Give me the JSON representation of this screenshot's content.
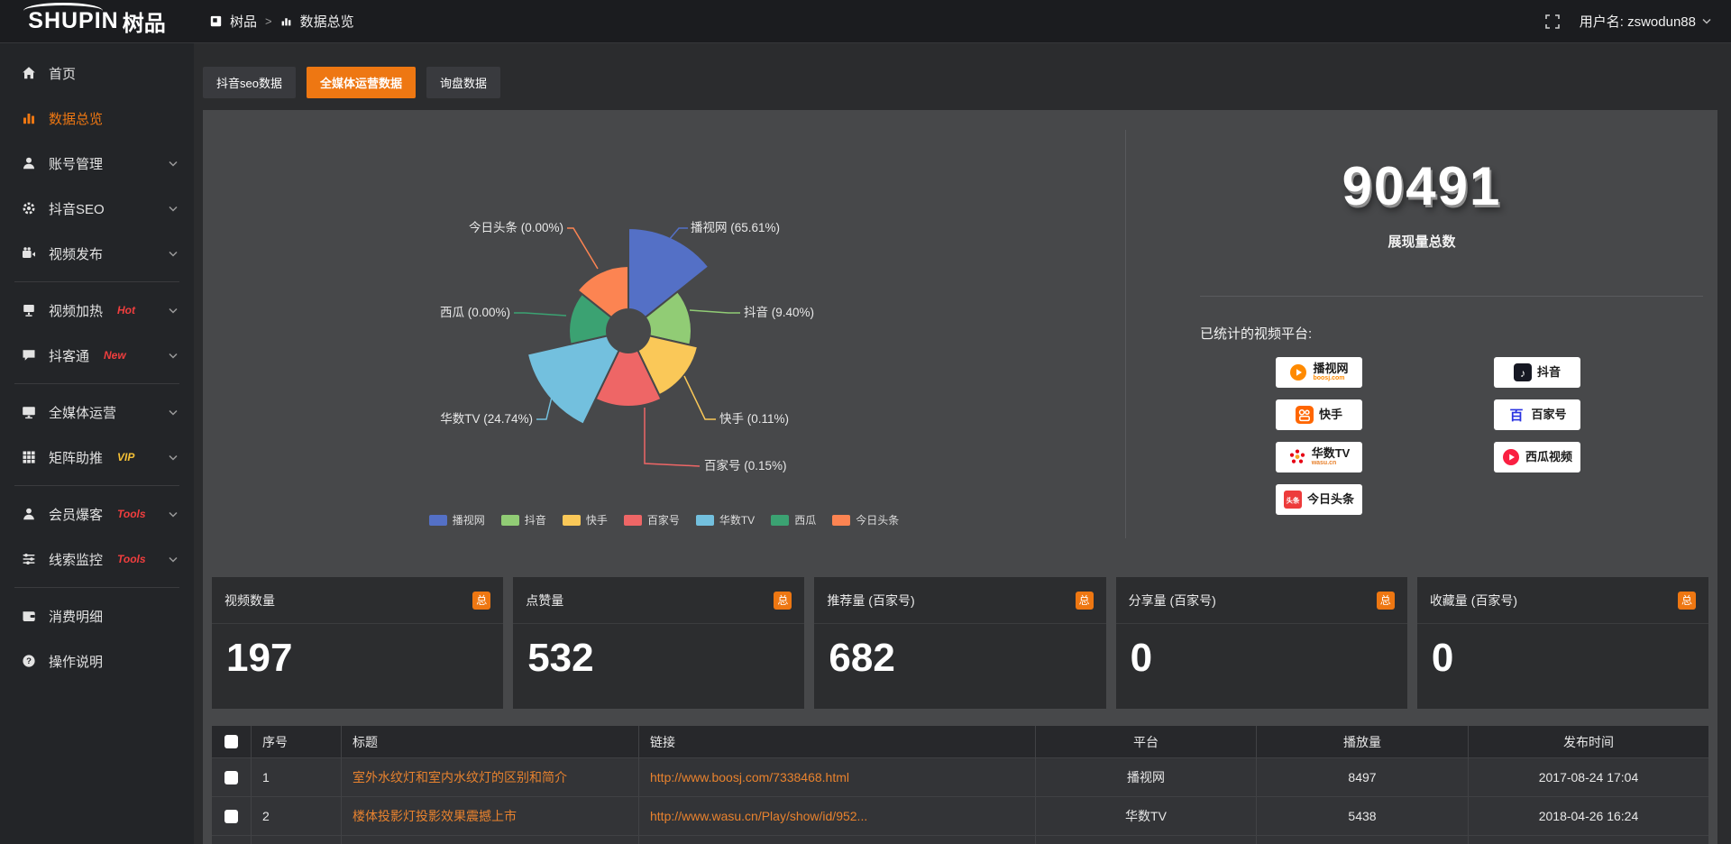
{
  "topbar": {
    "logo_en": "SHUPIN",
    "logo_cn": "树品",
    "breadcrumb": {
      "root": "树品",
      "separator": ">",
      "current": "数据总览"
    },
    "username": "用户名: zswodun88"
  },
  "sidebar": {
    "items": [
      {
        "id": "home",
        "icon": "home",
        "label": "首页"
      },
      {
        "id": "data-overview",
        "icon": "chart",
        "label": "数据总览",
        "active": true
      },
      {
        "id": "account-management",
        "icon": "user",
        "label": "账号管理",
        "expandable": true
      },
      {
        "id": "douyin-seo",
        "icon": "gear",
        "label": "抖音SEO",
        "expandable": true
      },
      {
        "id": "video-publish",
        "icon": "video",
        "label": "视频发布",
        "expandable": true
      },
      {
        "type": "divider"
      },
      {
        "id": "video-heat",
        "icon": "heat",
        "label": "视频加热",
        "badge": "Hot",
        "badge_color": "#f03e3e",
        "expandable": true
      },
      {
        "id": "douketong",
        "icon": "chat",
        "label": "抖客通",
        "badge": "New",
        "badge_color": "#f03e3e",
        "expandable": true
      },
      {
        "type": "divider"
      },
      {
        "id": "omnimedia",
        "icon": "monitor",
        "label": "全媒体运营",
        "expandable": true
      },
      {
        "id": "matrix-boost",
        "icon": "grid",
        "label": "矩阵助推",
        "badge": "VIP",
        "badge_color": "#f5c036",
        "expandable": true
      },
      {
        "type": "divider"
      },
      {
        "id": "member-burst",
        "icon": "person",
        "label": "会员爆客",
        "badge": "Tools",
        "badge_color": "#f03e3e",
        "expandable": true
      },
      {
        "id": "lead-monitor",
        "icon": "sliders",
        "label": "线索监控",
        "badge": "Tools",
        "badge_color": "#f03e3e",
        "expandable": true
      },
      {
        "type": "divider"
      },
      {
        "id": "expense-detail",
        "icon": "wallet",
        "label": "消费明细"
      },
      {
        "id": "instructions",
        "icon": "question",
        "label": "操作说明"
      }
    ]
  },
  "tabs": [
    {
      "id": "douyin-seo-data",
      "label": "抖音seo数据"
    },
    {
      "id": "omnimedia-data",
      "label": "全媒体运营数据",
      "active": true
    },
    {
      "id": "inquiry-data",
      "label": "询盘数据"
    }
  ],
  "chart_data": {
    "type": "pie",
    "variant": "nightingale-rose",
    "unit": "%",
    "slices": [
      {
        "label": "播视网",
        "value": 65.61,
        "display": "播视网 (65.61%)",
        "color": "#5470c6"
      },
      {
        "label": "抖音",
        "value": 9.4,
        "display": "抖音 (9.40%)",
        "color": "#91cc75"
      },
      {
        "label": "快手",
        "value": 0.11,
        "display": "快手 (0.11%)",
        "color": "#fac858"
      },
      {
        "label": "百家号",
        "value": 0.15,
        "display": "百家号 (0.15%)",
        "color": "#ee6666"
      },
      {
        "label": "华数TV",
        "value": 24.74,
        "display": "华数TV (24.74%)",
        "color": "#73c0de"
      },
      {
        "label": "西瓜",
        "value": 0.0,
        "display": "西瓜 (0.00%)",
        "color": "#3ba272"
      },
      {
        "label": "今日头条",
        "value": 0.0,
        "display": "今日头条 (0.00%)",
        "color": "#fc8452"
      }
    ],
    "legend": [
      "播视网",
      "抖音",
      "快手",
      "百家号",
      "华数TV",
      "西瓜",
      "今日头条"
    ],
    "legend_position": "bottom"
  },
  "summary": {
    "total_value": "90491",
    "total_label": "展现量总数",
    "platforms_title": "已统计的视频平台:",
    "platform_columns": [
      [
        {
          "id": "boosj",
          "name": "播视网",
          "sub": "boosj.com",
          "sub_color": "#ff8a00"
        },
        {
          "id": "kuaishou",
          "name": "快手"
        },
        {
          "id": "wasu",
          "name": "华数TV",
          "sub": "wasu.cn",
          "sub_color": "#e8822e"
        },
        {
          "id": "toutiao",
          "name": "今日头条"
        }
      ],
      [
        {
          "id": "douyin",
          "name": "抖音"
        },
        {
          "id": "baijiahao",
          "name": "百家号"
        },
        {
          "id": "xigua",
          "name": "西瓜视频"
        }
      ]
    ]
  },
  "stat_cards": [
    {
      "title": "视频数量",
      "badge": "总",
      "value": "197"
    },
    {
      "title": "点赞量",
      "badge": "总",
      "value": "532"
    },
    {
      "title": "推荐量 (百家号)",
      "badge": "总",
      "value": "682"
    },
    {
      "title": "分享量 (百家号)",
      "badge": "总",
      "value": "0"
    },
    {
      "title": "收藏量 (百家号)",
      "badge": "总",
      "value": "0"
    }
  ],
  "table": {
    "headers": [
      "序号",
      "标题",
      "链接",
      "平台",
      "播放量",
      "发布时间"
    ],
    "rows": [
      {
        "no": "1",
        "title": "室外水纹灯和室内水纹灯的区别和简介",
        "link": "http://www.boosj.com/7338468.html",
        "platform": "播视网",
        "views": "8497",
        "time": "2017-08-24 17:04"
      },
      {
        "no": "2",
        "title": "楼体投影灯投影效果震撼上市",
        "link": "http://www.wasu.cn/Play/show/id/952...",
        "platform": "华数TV",
        "views": "5438",
        "time": "2018-04-26 16:24"
      },
      {
        "no": "",
        "title": "",
        "link": "",
        "platform": "",
        "views": "",
        "time": ""
      }
    ]
  },
  "colors": {
    "accent": "#ee7712",
    "link": "#e8822e",
    "topbar_bg": "#1b1c1f",
    "sidebar_bg": "#232528",
    "page_bg": "#2b2c2e",
    "panel_bg": "#47484a",
    "card_bg": "#2c2d2f",
    "badge_red": "#f03e3e",
    "badge_gold": "#f5c036"
  }
}
